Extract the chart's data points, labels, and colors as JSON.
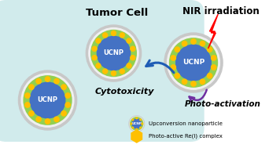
{
  "bg_color": "#ffffff",
  "cell_color": "#cce9ea",
  "ucnp_blue": "#4472c4",
  "ucnp_green": "#92d050",
  "ucnp_gray": "#c8c8c8",
  "ucnp_white": "#e8e8e8",
  "dot_color": "#ffc000",
  "ucnp_label": "UCNP",
  "title_tumor": "Tumor Cell",
  "title_nir": "NIR irradiation",
  "label_cyto": "Cytotoxicity",
  "label_photo": "Photo-activation",
  "legend_ucnp": "Upconversion nanoparticle",
  "legend_re": "Photo-active Re(I) complex",
  "arrow_blue": "#1f5cb5",
  "arrow_purple": "#7030a0",
  "fig_w": 3.42,
  "fig_h": 1.89
}
